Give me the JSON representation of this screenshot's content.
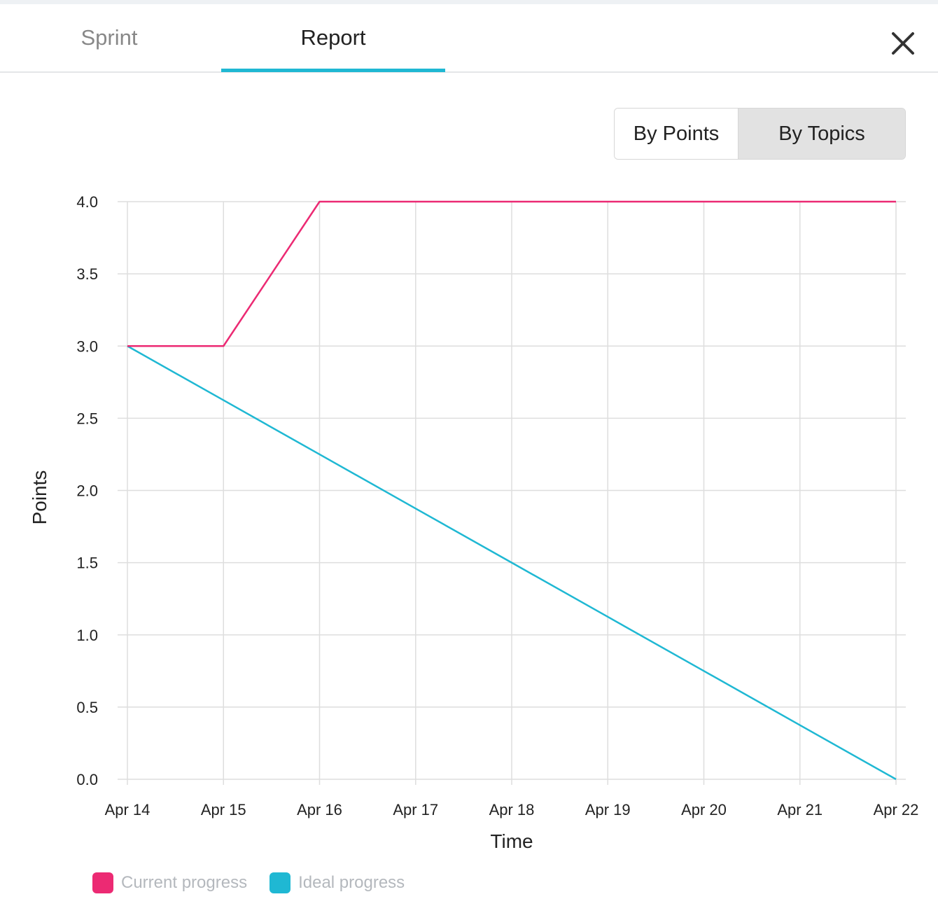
{
  "tabs": {
    "sprint_label": "Sprint",
    "report_label": "Report",
    "active": "Report",
    "accent_color": "#1fb8d3"
  },
  "close": {
    "icon": "close-icon"
  },
  "toggle": {
    "options": [
      "By Points",
      "By Topics"
    ],
    "selected": "By Topics"
  },
  "chart_data": {
    "type": "line",
    "title": "",
    "xlabel": "Time",
    "ylabel": "Points",
    "categories": [
      "Apr 14",
      "Apr 15",
      "Apr 16",
      "Apr 17",
      "Apr 18",
      "Apr 19",
      "Apr 20",
      "Apr 21",
      "Apr 22"
    ],
    "yticks": [
      "0.0",
      "0.5",
      "1.0",
      "1.5",
      "2.0",
      "2.5",
      "3.0",
      "3.5",
      "4.0"
    ],
    "ylim": [
      0,
      4
    ],
    "grid": true,
    "legend_position": "bottom-left",
    "series": [
      {
        "name": "Current progress",
        "color": "#ec2a73",
        "values": [
          3,
          3,
          4,
          4,
          4,
          4,
          4,
          4,
          4
        ]
      },
      {
        "name": "Ideal progress",
        "color": "#1fb8d3",
        "values": [
          3,
          2.625,
          2.25,
          1.875,
          1.5,
          1.125,
          0.75,
          0.375,
          0
        ]
      }
    ]
  }
}
